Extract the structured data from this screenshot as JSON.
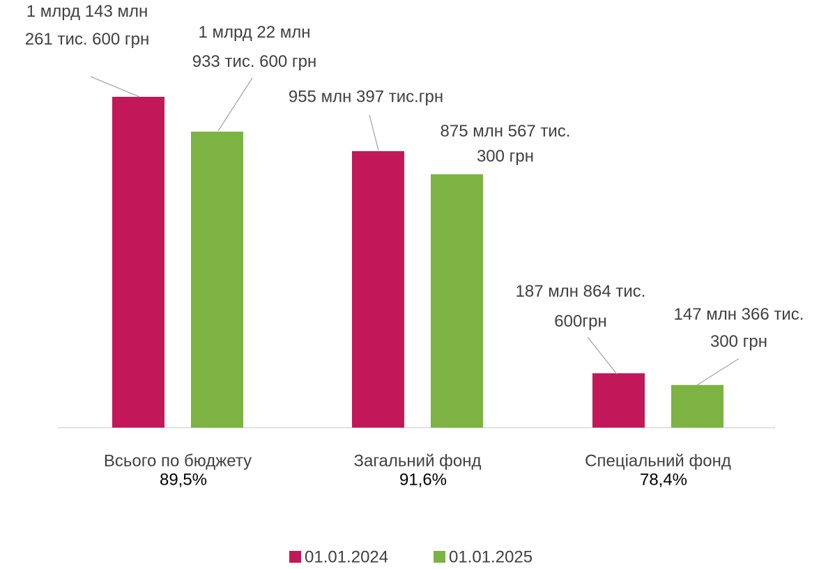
{
  "chart_data": {
    "type": "bar",
    "categories": [
      "Всього по бюджету",
      "Загальний фонд",
      "Спеціальний фонд"
    ],
    "category_notes": [
      "89,5%",
      "91,6%",
      "78,4%"
    ],
    "series": [
      {
        "name": "01.01.2024",
        "color": "#c2185a",
        "values": [
          1143261600,
          955397000,
          187864600
        ],
        "value_labels": [
          "1 млрд 143 млн\n261 тис. 600 грн",
          "955 млн 397 тис.грн",
          "187 млн 864 тис.\n600грн"
        ]
      },
      {
        "name": "01.01.2025",
        "color": "#7cb342",
        "values": [
          1022933600,
          875567300,
          147366300
        ],
        "value_labels": [
          "1 млрд 22 млн\n933 тис. 600 грн",
          "875 млн 567 тис.\n300 грн",
          "147 млн 366 тис.\n300 грн"
        ]
      }
    ],
    "legend": "bottom"
  }
}
